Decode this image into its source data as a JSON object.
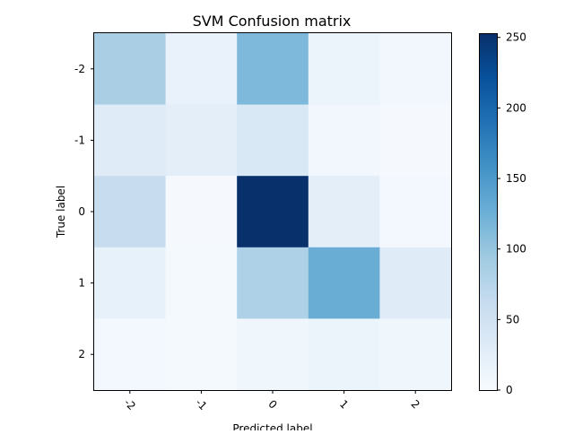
{
  "chart_data": {
    "type": "heatmap",
    "title": "SVM Confusion matrix",
    "xlabel": "Predicted label",
    "ylabel": "True label",
    "x_categories": [
      "-2",
      "-1",
      "0",
      "1",
      "2"
    ],
    "y_categories": [
      "-2",
      "-1",
      "0",
      "1",
      "2"
    ],
    "values": [
      [
        85,
        18,
        115,
        15,
        8
      ],
      [
        30,
        25,
        38,
        8,
        3
      ],
      [
        62,
        3,
        253,
        25,
        5
      ],
      [
        20,
        4,
        82,
        128,
        30
      ],
      [
        5,
        4,
        10,
        14,
        10
      ]
    ],
    "colormap": "Blues",
    "colorbar": {
      "ticks": [
        0,
        50,
        100,
        150,
        200,
        250
      ],
      "range": [
        0,
        253
      ]
    },
    "colors": {
      "min": "#f7fbff",
      "max": "#08306b"
    }
  }
}
